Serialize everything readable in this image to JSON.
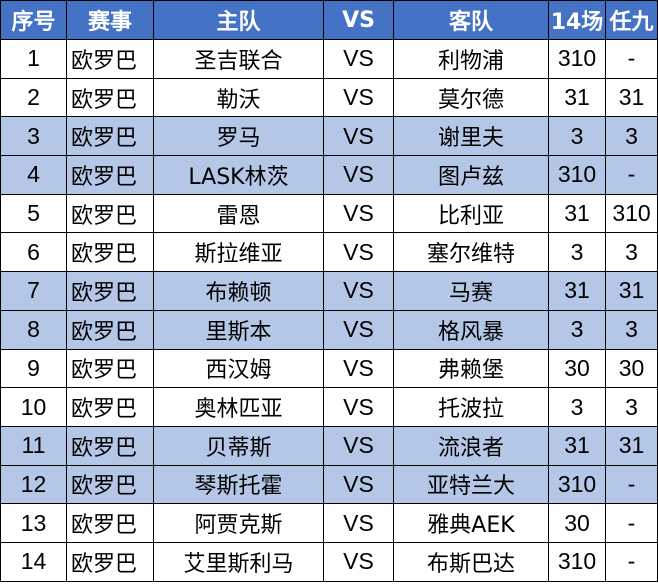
{
  "colors": {
    "header_bg": "#4472c4",
    "header_text": "#ffffff",
    "highlight_row_bg": "#b4c7e7",
    "row_bg": "#ffffff",
    "border": "#000000"
  },
  "headers": {
    "num": "序号",
    "event": "赛事",
    "home": "主队",
    "vs": "VS",
    "away": "客队",
    "pick14": "14场",
    "pick9": "任九"
  },
  "rows": [
    {
      "num": "1",
      "event": "欧罗巴",
      "home": "圣吉联合",
      "vs": "VS",
      "away": "利物浦",
      "pick14": "310",
      "pick9": "-",
      "highlight": false
    },
    {
      "num": "2",
      "event": "欧罗巴",
      "home": "勒沃",
      "vs": "VS",
      "away": "莫尔德",
      "pick14": "31",
      "pick9": "31",
      "highlight": false
    },
    {
      "num": "3",
      "event": "欧罗巴",
      "home": "罗马",
      "vs": "VS",
      "away": "谢里夫",
      "pick14": "3",
      "pick9": "3",
      "highlight": true
    },
    {
      "num": "4",
      "event": "欧罗巴",
      "home": "LASK林茨",
      "vs": "VS",
      "away": "图卢兹",
      "pick14": "310",
      "pick9": "-",
      "highlight": true
    },
    {
      "num": "5",
      "event": "欧罗巴",
      "home": "雷恩",
      "vs": "VS",
      "away": "比利亚",
      "pick14": "31",
      "pick9": "310",
      "highlight": false
    },
    {
      "num": "6",
      "event": "欧罗巴",
      "home": "斯拉维亚",
      "vs": "VS",
      "away": "塞尔维特",
      "pick14": "3",
      "pick9": "3",
      "highlight": false
    },
    {
      "num": "7",
      "event": "欧罗巴",
      "home": "布赖顿",
      "vs": "VS",
      "away": "马赛",
      "pick14": "31",
      "pick9": "31",
      "highlight": true
    },
    {
      "num": "8",
      "event": "欧罗巴",
      "home": "里斯本",
      "vs": "VS",
      "away": "格风暴",
      "pick14": "3",
      "pick9": "3",
      "highlight": true
    },
    {
      "num": "9",
      "event": "欧罗巴",
      "home": "西汉姆",
      "vs": "VS",
      "away": "弗赖堡",
      "pick14": "30",
      "pick9": "30",
      "highlight": false
    },
    {
      "num": "10",
      "event": "欧罗巴",
      "home": "奥林匹亚",
      "vs": "VS",
      "away": "托波拉",
      "pick14": "3",
      "pick9": "3",
      "highlight": false
    },
    {
      "num": "11",
      "event": "欧罗巴",
      "home": "贝蒂斯",
      "vs": "VS",
      "away": "流浪者",
      "pick14": "31",
      "pick9": "31",
      "highlight": true
    },
    {
      "num": "12",
      "event": "欧罗巴",
      "home": "琴斯托霍",
      "vs": "VS",
      "away": "亚特兰大",
      "pick14": "310",
      "pick9": "-",
      "highlight": true
    },
    {
      "num": "13",
      "event": "欧罗巴",
      "home": "阿贾克斯",
      "vs": "VS",
      "away": "雅典AEK",
      "pick14": "30",
      "pick9": "-",
      "highlight": false
    },
    {
      "num": "14",
      "event": "欧罗巴",
      "home": "艾里斯利马",
      "vs": "VS",
      "away": "布斯巴达",
      "pick14": "310",
      "pick9": "-",
      "highlight": false
    }
  ]
}
